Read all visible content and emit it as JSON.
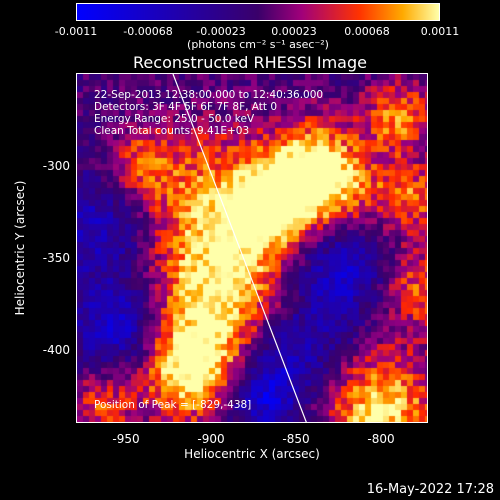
{
  "colorbar": {
    "ticks": [
      "-0.0011",
      "-0.00068",
      "-0.00023",
      "0.00023",
      "0.00068",
      "0.0011"
    ],
    "units": "(photons cm⁻² s⁻¹ asec⁻²)"
  },
  "title": "Reconstructed RHESSI Image",
  "info": {
    "time": "22-Sep-2013 12:38:00.000 to 12:40:36.000",
    "detectors": "Detectors: 3F 4F 5F 6F 7F 8F, Att 0",
    "energy": "Energy Range: 25.0 - 50.0 keV",
    "clean": "Clean    Total counts: 9.41E+03"
  },
  "peak": "Position of Peak = [-829,-438]",
  "axes": {
    "xlabel": "Heliocentric X (arcsec)",
    "ylabel": "Heliocentric Y (arcsec)",
    "xticks": [
      "-950",
      "-900",
      "-850",
      "-800"
    ],
    "yticks": [
      "-300",
      "-350",
      "-400"
    ]
  },
  "footer": {
    "date": "16-May-2022 17:28"
  },
  "colors": {
    "negative": "#0000ff",
    "zero": "#3a006a",
    "positive_mid": "#ff3300",
    "positive_max": "#ffffaa"
  }
}
